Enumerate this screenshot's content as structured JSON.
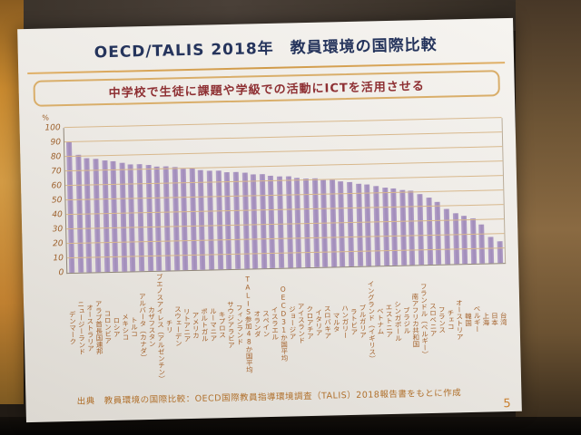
{
  "slide": {
    "title": "OECD/TALIS 2018年　教員環境の国際比較",
    "subtitle": "中学校で生徒に課題や学級での活動にICTを活用させる",
    "source_note": "出典　教員環境の国際比較：OECD国際教員指導環境調査（TALIS）2018報告書をもとに作成",
    "page_number": "5"
  },
  "colors": {
    "title_text": "#25345c",
    "subtitle_text": "#8e3033",
    "bar_fill": "#a893bf",
    "gridline": "#d8b88c",
    "axis_text": "#9c5f2a",
    "accent_line": "#d09a48"
  },
  "chart_data": {
    "type": "bar",
    "title": "中学校で生徒に課題や学級での活動にICTを活用させる",
    "xlabel": "",
    "ylabel": "%",
    "unit_label": "%",
    "ylim": [
      0,
      100
    ],
    "ytick_interval": 10,
    "grid": true,
    "legend": "none",
    "categories": [
      "デンマーク",
      "ニュージーランド",
      "オーストラリア",
      "アラブ首長国連邦",
      "コロンビア",
      "ロシア",
      "メキシコ",
      "トルコ",
      "アルバータ（カナダ）",
      "カザフスタン",
      "ブエノスアイレス（アルゼンチン）",
      "チリ",
      "スウェーデン",
      "リトアニア",
      "アメリカ",
      "ポルトガル",
      "ルーマニア",
      "キプロス",
      "サウジアラビア",
      "フィンランド",
      "TALIS参加48か国平均",
      "オランダ",
      "スペイン",
      "イスラエル",
      "OECD31か国平均",
      "ジョージア",
      "アイスランド",
      "クロアチア",
      "イタリア",
      "スロバキア",
      "マルタ",
      "ハンガリー",
      "ラトビア",
      "ブルガリア",
      "イングランド（イギリス）",
      "ベトナム",
      "エストニア",
      "シンガポール",
      "ブラジル",
      "南アフリカ共和国",
      "フランドル（ベルギー）",
      "スロベニア",
      "フランス",
      "チェコ",
      "オーストリア",
      "韓国",
      "ベルギー",
      "上海",
      "日本",
      "台湾"
    ],
    "values": [
      90,
      81,
      79,
      78,
      77,
      76,
      75,
      74,
      74,
      73,
      72,
      72,
      71,
      70,
      70,
      69,
      68,
      68,
      67,
      67,
      66,
      65,
      65,
      64,
      63,
      63,
      62,
      61,
      61,
      60,
      60,
      59,
      58,
      57,
      56,
      55,
      54,
      53,
      52,
      51,
      49,
      46,
      43,
      38,
      35,
      33,
      31,
      27,
      18,
      15
    ]
  }
}
